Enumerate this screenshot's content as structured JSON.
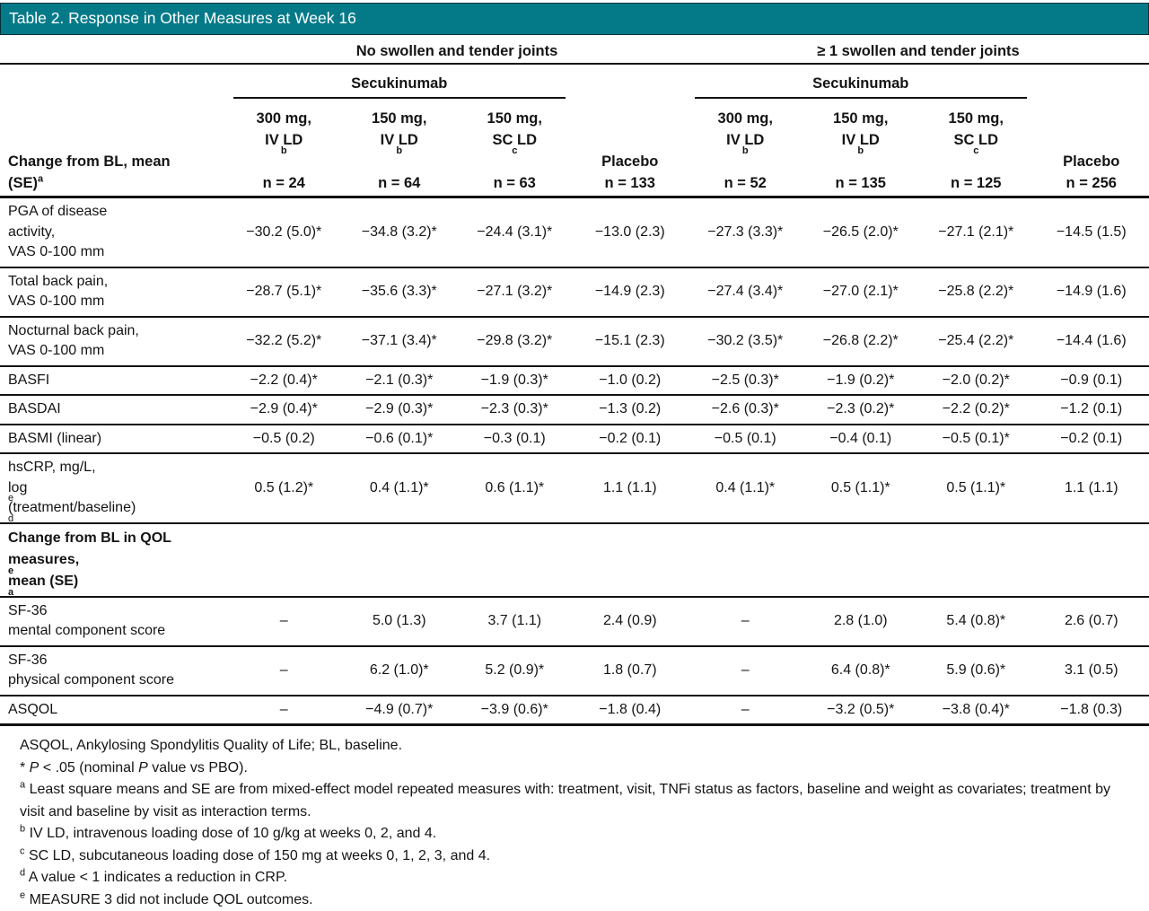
{
  "title": "Table 2. Response in Other Measures at Week 16",
  "theme": {
    "title_bar_bg": "#047a89",
    "title_bar_text": "#ffffff",
    "rule_color": "#111111",
    "text_color": "#141414"
  },
  "header": {
    "groups": [
      {
        "label": "No swollen and tender joints"
      },
      {
        "label": "≥ 1 swollen and tender joints"
      }
    ],
    "subgroup_label": "Secukinumab",
    "stub_label": "Change from BL, mean\n(SE)^{a}",
    "columns": [
      {
        "line1": "300 mg,",
        "line2": "IV LD^{b}",
        "line3": "n = 24"
      },
      {
        "line1": "150 mg,",
        "line2": "IV LD^{b}",
        "line3": "n = 64"
      },
      {
        "line1": "150 mg,",
        "line2": "SC LD^{c}",
        "line3": "n = 63"
      },
      {
        "line1": "",
        "line2": "Placebo",
        "line3": "n = 133"
      },
      {
        "line1": "300 mg,",
        "line2": "IV LD^{b}",
        "line3": "n = 52"
      },
      {
        "line1": "150 mg,",
        "line2": "IV LD^{b}",
        "line3": "n = 135"
      },
      {
        "line1": "150 mg,",
        "line2": "SC LD^{c}",
        "line3": "n = 125"
      },
      {
        "line1": "",
        "line2": "Placebo",
        "line3": "n = 256"
      }
    ]
  },
  "rows": [
    {
      "label_lines": [
        "PGA of disease",
        "activity,",
        "VAS 0-100 mm"
      ],
      "values": [
        "−30.2 (5.0)*",
        "−34.8 (3.2)*",
        "−24.4 (3.1)*",
        "−13.0 (2.3)",
        "−27.3 (3.3)*",
        "−26.5 (2.0)*",
        "−27.1 (2.1)*",
        "−14.5 (1.5)"
      ]
    },
    {
      "label_lines": [
        "Total back pain,",
        "VAS 0-100 mm"
      ],
      "values": [
        "−28.7 (5.1)*",
        "−35.6 (3.3)*",
        "−27.1 (3.2)*",
        "−14.9 (2.3)",
        "−27.4 (3.4)*",
        "−27.0 (2.1)*",
        "−25.8 (2.2)*",
        "−14.9 (1.6)"
      ]
    },
    {
      "label_lines": [
        "Nocturnal back pain,",
        "VAS 0-100 mm"
      ],
      "values": [
        "−32.2 (5.2)*",
        "−37.1 (3.4)*",
        "−29.8 (3.2)*",
        "−15.1 (2.3)",
        "−30.2 (3.5)*",
        "−26.8 (2.2)*",
        "−25.4 (2.2)*",
        "−14.4 (1.6)"
      ]
    },
    {
      "label_lines": [
        "BASFI"
      ],
      "values": [
        "−2.2 (0.4)*",
        "−2.1 (0.3)*",
        "−1.9 (0.3)*",
        "−1.0 (0.2)",
        "−2.5 (0.3)*",
        "−1.9 (0.2)*",
        "−2.0 (0.2)*",
        "−0.9 (0.1)"
      ]
    },
    {
      "label_lines": [
        "BASDAI"
      ],
      "values": [
        "−2.9 (0.4)*",
        "−2.9 (0.3)*",
        "−2.3 (0.3)*",
        "−1.3 (0.2)",
        "−2.6 (0.3)*",
        "−2.3 (0.2)*",
        "−2.2 (0.2)*",
        "−1.2 (0.1)"
      ]
    },
    {
      "label_lines": [
        "BASMI (linear)"
      ],
      "values": [
        "−0.5 (0.2)",
        "−0.6 (0.1)*",
        "−0.3 (0.1)",
        "−0.2 (0.1)",
        "−0.5 (0.1)",
        "−0.4 (0.1)",
        "−0.5 (0.1)*",
        "−0.2 (0.1)"
      ]
    },
    {
      "label_lines": [
        "hsCRP, mg/L,",
        "log_{e}(treatment/baseline)^{d}"
      ],
      "values": [
        "0.5 (1.2)*",
        "0.4 (1.1)*",
        "0.6 (1.1)*",
        "1.1 (1.1)",
        "0.4 (1.1)*",
        "0.5 (1.1)*",
        "0.5 (1.1)*",
        "1.1 (1.1)"
      ]
    },
    {
      "section": true,
      "label_lines": [
        "Change from BL in QOL",
        "measures,^{e} mean (SE)^{a}"
      ],
      "values": [
        "",
        "",
        "",
        "",
        "",
        "",
        "",
        ""
      ]
    },
    {
      "label_lines": [
        "SF-36",
        "mental component score"
      ],
      "values": [
        "–",
        "5.0 (1.3)",
        "3.7 (1.1)",
        "2.4 (0.9)",
        "–",
        "2.8 (1.0)",
        "5.4 (0.8)*",
        "2.6 (0.7)"
      ]
    },
    {
      "label_lines": [
        "SF-36",
        "physical component score"
      ],
      "values": [
        "–",
        "6.2 (1.0)*",
        "5.2 (0.9)*",
        "1.8 (0.7)",
        "–",
        "6.4 (0.8)*",
        "5.9 (0.6)*",
        "3.1 (0.5)"
      ]
    },
    {
      "label_lines": [
        "ASQOL"
      ],
      "values": [
        "–",
        "−4.9 (0.7)*",
        "−3.9 (0.6)*",
        "−1.8 (0.4)",
        "–",
        "−3.2 (0.5)*",
        "−3.8 (0.4)*",
        "−1.8 (0.3)"
      ]
    }
  ],
  "footnotes": [
    "ASQOL, Ankylosing Spondylitis Quality of Life; BL, baseline.",
    "* ~{P} < .05 (nominal ~{P} value vs PBO).",
    "^{a} Least square means and SE are from mixed-effect model repeated measures with: treatment, visit, TNFi status as factors, baseline and weight as covariates; treatment by visit and baseline by visit as interaction terms.",
    "^{b} IV LD, intravenous loading dose of 10 g/kg at weeks 0, 2, and 4.",
    "^{c} SC LD, subcutaneous loading dose of 150 mg at weeks 0, 1, 2, 3, and 4.",
    "^{d} A value < 1 indicates a reduction in CRP.",
    "^{e} MEASURE 3 did not include QOL outcomes."
  ]
}
